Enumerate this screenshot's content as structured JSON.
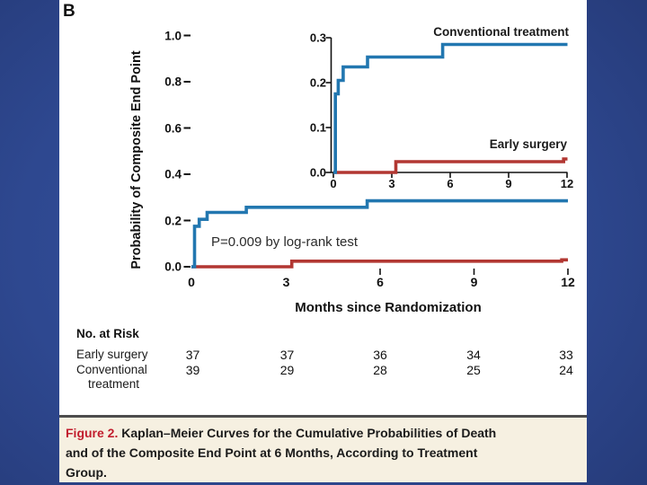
{
  "panel_label": "B",
  "y_axis_title": "Probability of Composite End Point",
  "x_axis_title": "Months since Randomization",
  "p_value_text": "P=0.009 by log-rank test",
  "curve_labels": {
    "conventional": "Conventional treatment",
    "early": "Early surgery"
  },
  "colors": {
    "conventional_curve": "#2277b0",
    "early_curve": "#b23732",
    "axis": "#111111",
    "caption_label_red": "#c21e2e",
    "caption_background": "#f6f0e1",
    "slide_background": "#2e4890"
  },
  "chart_data": [
    {
      "type": "line",
      "variant": "kaplan-meier-step",
      "panel": "main",
      "xlabel": "Months since Randomization",
      "ylabel": "Probability of Composite End Point",
      "xlim": [
        0,
        12
      ],
      "ylim": [
        0,
        1.0
      ],
      "x_ticks": [
        "0",
        "3",
        "6",
        "9",
        "12"
      ],
      "y_ticks": [
        "1.0",
        "0.8",
        "0.6",
        "0.4",
        "0.2",
        "0.0"
      ],
      "annotation": "P=0.009 by log-rank test",
      "grid": false,
      "series": [
        {
          "name": "Conventional treatment",
          "color": "#2277b0",
          "points": [
            [
              0,
              0
            ],
            [
              0.1,
              0
            ],
            [
              0.1,
              0.175
            ],
            [
              0.25,
              0.175
            ],
            [
              0.25,
              0.205
            ],
            [
              0.5,
              0.205
            ],
            [
              0.5,
              0.235
            ],
            [
              1.75,
              0.235
            ],
            [
              1.75,
              0.257
            ],
            [
              5.6,
              0.257
            ],
            [
              5.6,
              0.285
            ],
            [
              12,
              0.285
            ]
          ]
        },
        {
          "name": "Early surgery",
          "color": "#b23732",
          "points": [
            [
              0,
              0
            ],
            [
              3.2,
              0
            ],
            [
              3.2,
              0.024
            ],
            [
              11.8,
              0.024
            ],
            [
              11.8,
              0.03
            ],
            [
              12,
              0.03
            ]
          ]
        }
      ]
    },
    {
      "type": "line",
      "variant": "kaplan-meier-step",
      "panel": "inset",
      "xlim": [
        0,
        12
      ],
      "ylim": [
        0,
        0.3
      ],
      "x_ticks": [
        "0",
        "3",
        "6",
        "9",
        "12"
      ],
      "y_ticks": [
        "0.3",
        "0.2",
        "0.1",
        "0.0"
      ],
      "grid": false,
      "legend_position": "labels-right",
      "series": [
        {
          "name": "Conventional treatment",
          "color": "#2277b0",
          "points": [
            [
              0,
              0
            ],
            [
              0.1,
              0
            ],
            [
              0.1,
              0.175
            ],
            [
              0.25,
              0.175
            ],
            [
              0.25,
              0.205
            ],
            [
              0.5,
              0.205
            ],
            [
              0.5,
              0.235
            ],
            [
              1.75,
              0.235
            ],
            [
              1.75,
              0.257
            ],
            [
              5.6,
              0.257
            ],
            [
              5.6,
              0.285
            ],
            [
              12,
              0.285
            ]
          ]
        },
        {
          "name": "Early surgery",
          "color": "#b23732",
          "points": [
            [
              0,
              0
            ],
            [
              3.2,
              0
            ],
            [
              3.2,
              0.024
            ],
            [
              11.8,
              0.024
            ],
            [
              11.8,
              0.03
            ],
            [
              12,
              0.03
            ]
          ]
        }
      ]
    }
  ],
  "risk_table": {
    "header": "No. at Risk",
    "time_points": [
      "0",
      "3",
      "6",
      "9",
      "12"
    ],
    "rows": [
      {
        "label": "Early surgery",
        "values": [
          "37",
          "37",
          "36",
          "34",
          "33"
        ]
      },
      {
        "label": "Conventional treatment",
        "values": [
          "39",
          "29",
          "28",
          "25",
          "24"
        ]
      }
    ]
  },
  "caption": {
    "label": "Figure 2.",
    "lines": [
      "Kaplan–Meier Curves for the Cumulative Probabilities of Death",
      "and of the Composite End Point at 6 Months, According to Treatment",
      "Group."
    ]
  }
}
